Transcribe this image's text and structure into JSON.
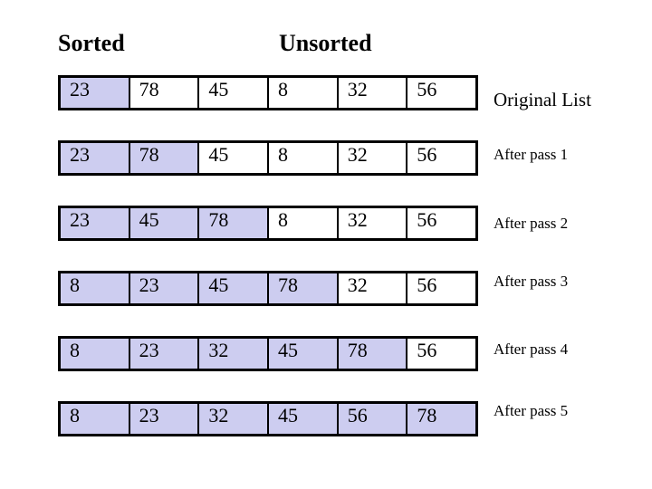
{
  "headers": {
    "sorted": "Sorted",
    "unsorted": "Unsorted"
  },
  "colors": {
    "highlight": "#cdcdf0",
    "border": "#000000",
    "background": "#ffffff"
  },
  "rows": [
    {
      "label": "Original List",
      "values": [
        "23",
        "78",
        "45",
        "8",
        "32",
        "56"
      ],
      "sorted_count": 1
    },
    {
      "label": "After pass 1",
      "values": [
        "23",
        "78",
        "45",
        "8",
        "32",
        "56"
      ],
      "sorted_count": 2
    },
    {
      "label": "After pass 2",
      "values": [
        "23",
        "45",
        "78",
        "8",
        "32",
        "56"
      ],
      "sorted_count": 3
    },
    {
      "label": "After pass 3",
      "values": [
        "8",
        "23",
        "45",
        "78",
        "32",
        "56"
      ],
      "sorted_count": 4
    },
    {
      "label": "After pass 4",
      "values": [
        "8",
        "23",
        "32",
        "45",
        "78",
        "56"
      ],
      "sorted_count": 5
    },
    {
      "label": "After pass 5",
      "values": [
        "8",
        "23",
        "32",
        "45",
        "56",
        "78"
      ],
      "sorted_count": 6
    }
  ]
}
